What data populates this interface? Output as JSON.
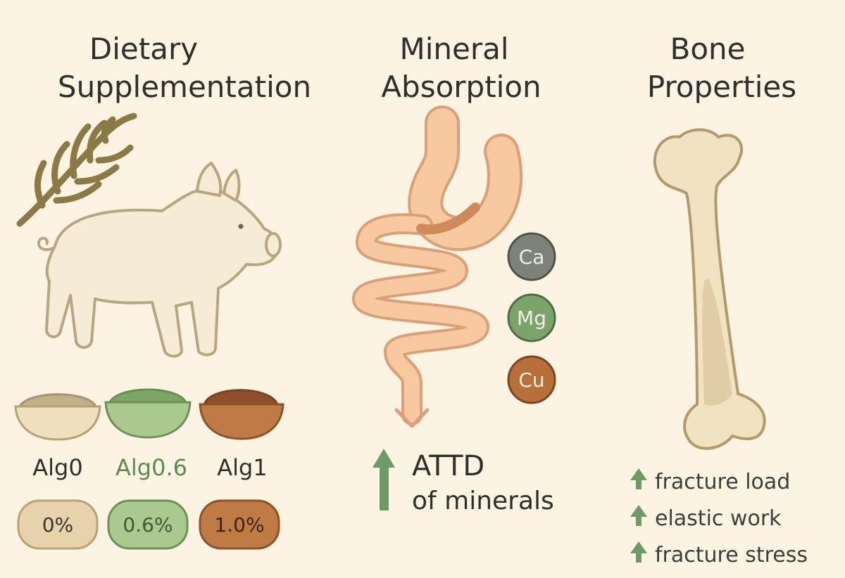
{
  "columns": [
    {
      "title_lines": [
        "Dietary",
        "Supplementation"
      ],
      "groups": [
        {
          "name": "Alg0",
          "level": "0%"
        },
        {
          "name": "Alg0.6",
          "level": "0.6%"
        },
        {
          "name": "Alg1",
          "level": "1.0%"
        }
      ]
    },
    {
      "title_lines": [
        "Mineral",
        "Absorption"
      ],
      "minerals": [
        "Ca",
        "Mg",
        "Cu"
      ],
      "result_lines": [
        "ATTD",
        "of minerals"
      ]
    },
    {
      "title_lines": [
        "Bone",
        "Properties"
      ],
      "effects": [
        "fracture load",
        "elastic work",
        "fracture stress"
      ]
    }
  ]
}
